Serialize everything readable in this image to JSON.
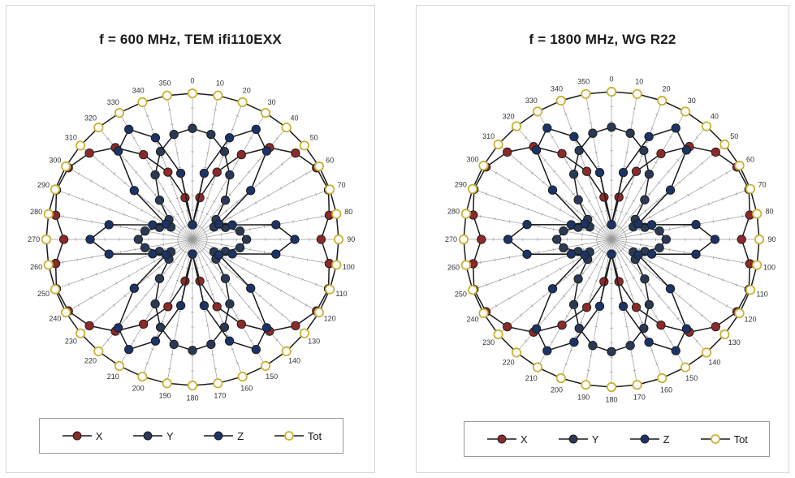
{
  "chart_data": [
    {
      "type": "polar-line",
      "title": "f = 600 MHz, TEM  ifi110EXX",
      "angle_unit": "degrees",
      "angles": [
        0,
        10,
        20,
        30,
        40,
        50,
        60,
        70,
        80,
        90,
        100,
        110,
        120,
        130,
        140,
        150,
        160,
        170,
        180,
        190,
        200,
        210,
        220,
        230,
        240,
        250,
        260,
        270,
        280,
        290,
        300,
        310,
        320,
        330,
        340,
        350
      ],
      "angle_labels": [
        "0",
        "10",
        "20",
        "30",
        "40",
        "50",
        "60",
        "70",
        "80",
        "90",
        "100",
        "110",
        "120",
        "130",
        "140",
        "150",
        "160",
        "170",
        "180",
        "190",
        "200",
        "210",
        "220",
        "230",
        "240",
        "250",
        "260",
        "270",
        "280",
        "290",
        "300",
        "310",
        "320",
        "330",
        "340",
        "350"
      ],
      "r_max": 1.0,
      "grid": true,
      "legend_position": "bottom",
      "series": [
        {
          "name": "X",
          "color": "#8b2a2a",
          "values": [
            0.1,
            0.29,
            0.49,
            0.67,
            0.82,
            0.92,
            0.98,
            0.99,
            0.95,
            0.88,
            0.95,
            0.99,
            0.98,
            0.92,
            0.82,
            0.67,
            0.49,
            0.29,
            0.1,
            0.29,
            0.49,
            0.67,
            0.82,
            0.92,
            0.98,
            0.99,
            0.95,
            0.88,
            0.95,
            0.99,
            0.98,
            0.92,
            0.82,
            0.67,
            0.49,
            0.29
          ]
        },
        {
          "name": "Y",
          "color": "#2a3a55",
          "values": [
            0.76,
            0.73,
            0.64,
            0.51,
            0.35,
            0.21,
            0.17,
            0.24,
            0.33,
            0.37,
            0.33,
            0.24,
            0.17,
            0.21,
            0.35,
            0.51,
            0.64,
            0.73,
            0.76,
            0.73,
            0.64,
            0.51,
            0.35,
            0.21,
            0.17,
            0.24,
            0.33,
            0.37,
            0.33,
            0.24,
            0.17,
            0.21,
            0.35,
            0.51,
            0.64,
            0.73
          ]
        },
        {
          "name": "Z",
          "color": "#1c3366",
          "values": [
            0.1,
            0.46,
            0.74,
            0.87,
            0.79,
            0.52,
            0.21,
            0.29,
            0.58,
            0.7,
            0.58,
            0.29,
            0.21,
            0.52,
            0.79,
            0.87,
            0.74,
            0.46,
            0.1,
            0.46,
            0.74,
            0.87,
            0.79,
            0.52,
            0.21,
            0.29,
            0.58,
            0.7,
            0.58,
            0.29,
            0.21,
            0.52,
            0.79,
            0.87,
            0.74,
            0.46
          ]
        },
        {
          "name": "Tot",
          "color": "#c9b233",
          "values": [
            1,
            1,
            1,
            1,
            1,
            1,
            1,
            1,
            1,
            1,
            1,
            1,
            1,
            1,
            1,
            1,
            1,
            1,
            1,
            1,
            1,
            1,
            1,
            1,
            1,
            1,
            1,
            1,
            1,
            1,
            1,
            1,
            1,
            1,
            1,
            1
          ]
        }
      ]
    },
    {
      "type": "polar-line",
      "title": "f = 1800 MHz, WG R22",
      "angle_unit": "degrees",
      "angles": [
        0,
        10,
        20,
        30,
        40,
        50,
        60,
        70,
        80,
        90,
        100,
        110,
        120,
        130,
        140,
        150,
        160,
        170,
        180,
        190,
        200,
        210,
        220,
        230,
        240,
        250,
        260,
        270,
        280,
        290,
        300,
        310,
        320,
        330,
        340,
        350
      ],
      "angle_labels": [
        "0",
        "10",
        "20",
        "30",
        "40",
        "50",
        "60",
        "70",
        "80",
        "90",
        "100",
        "110",
        "120",
        "130",
        "140",
        "150",
        "160",
        "170",
        "180",
        "190",
        "200",
        "210",
        "220",
        "230",
        "240",
        "250",
        "260",
        "270",
        "280",
        "290",
        "300",
        "310",
        "320",
        "330",
        "340",
        "350"
      ],
      "r_max": 1.0,
      "grid": true,
      "legend_position": "bottom",
      "series": [
        {
          "name": "X",
          "color": "#8b2a2a",
          "values": [
            0.1,
            0.29,
            0.49,
            0.67,
            0.82,
            0.92,
            0.98,
            0.99,
            0.95,
            0.88,
            0.95,
            0.99,
            0.98,
            0.92,
            0.82,
            0.67,
            0.49,
            0.29,
            0.1,
            0.29,
            0.49,
            0.67,
            0.82,
            0.92,
            0.98,
            0.99,
            0.95,
            0.88,
            0.95,
            0.99,
            0.98,
            0.92,
            0.82,
            0.67,
            0.49,
            0.29
          ]
        },
        {
          "name": "Y",
          "color": "#2a3a55",
          "values": [
            0.76,
            0.73,
            0.64,
            0.51,
            0.35,
            0.21,
            0.17,
            0.24,
            0.33,
            0.37,
            0.33,
            0.24,
            0.17,
            0.21,
            0.35,
            0.51,
            0.64,
            0.73,
            0.76,
            0.73,
            0.64,
            0.51,
            0.35,
            0.21,
            0.17,
            0.24,
            0.33,
            0.37,
            0.33,
            0.24,
            0.17,
            0.21,
            0.35,
            0.51,
            0.64,
            0.73
          ]
        },
        {
          "name": "Z",
          "color": "#1c3366",
          "values": [
            0.1,
            0.46,
            0.74,
            0.87,
            0.79,
            0.52,
            0.21,
            0.29,
            0.58,
            0.7,
            0.58,
            0.29,
            0.21,
            0.52,
            0.79,
            0.87,
            0.74,
            0.46,
            0.1,
            0.46,
            0.74,
            0.87,
            0.79,
            0.52,
            0.21,
            0.29,
            0.58,
            0.7,
            0.58,
            0.29,
            0.21,
            0.52,
            0.79,
            0.87,
            0.74,
            0.46
          ]
        },
        {
          "name": "Tot",
          "color": "#c9b233",
          "values": [
            1,
            1,
            1,
            1,
            1,
            1,
            1,
            1,
            1,
            1,
            1,
            1,
            1,
            1,
            1,
            1,
            1,
            1,
            1,
            1,
            1,
            1,
            1,
            1,
            1,
            1,
            1,
            1,
            1,
            1,
            1,
            1,
            1,
            1,
            1,
            1
          ]
        }
      ]
    }
  ]
}
